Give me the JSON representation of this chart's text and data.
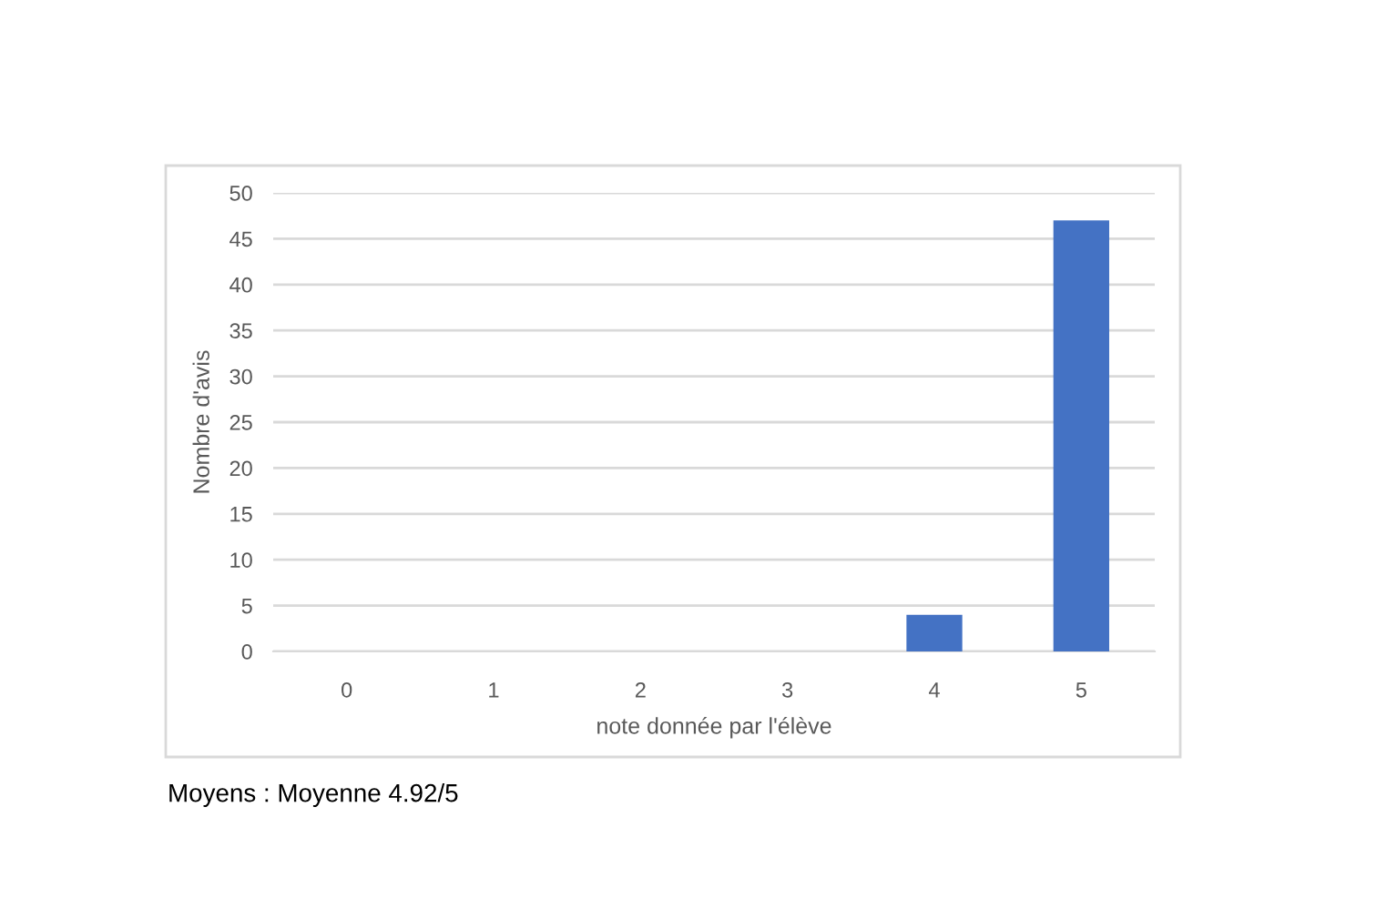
{
  "chart_data": {
    "type": "bar",
    "categories": [
      "0",
      "1",
      "2",
      "3",
      "4",
      "5"
    ],
    "values": [
      0,
      0,
      0,
      0,
      4,
      47
    ],
    "color": "#4472c4",
    "xlabel": "note donnée par l'élève",
    "ylabel": "Nombre d'avis",
    "ylim": [
      0,
      50
    ],
    "yticks": [
      0,
      5,
      10,
      15,
      20,
      25,
      30,
      35,
      40,
      45,
      50
    ],
    "grid": "y",
    "annotations": [
      "Moyens : Moyenne 4.92/5"
    ]
  }
}
